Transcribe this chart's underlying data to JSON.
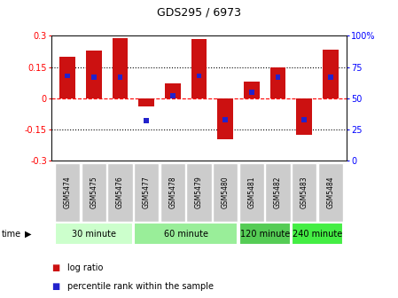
{
  "title": "GDS295 / 6973",
  "samples": [
    "GSM5474",
    "GSM5475",
    "GSM5476",
    "GSM5477",
    "GSM5478",
    "GSM5479",
    "GSM5480",
    "GSM5481",
    "GSM5482",
    "GSM5483",
    "GSM5484"
  ],
  "log_ratio": [
    0.2,
    0.23,
    0.29,
    -0.04,
    0.07,
    0.285,
    -0.195,
    0.08,
    0.15,
    -0.175,
    0.235
  ],
  "percentile": [
    0.68,
    0.67,
    0.67,
    0.32,
    0.52,
    0.68,
    0.33,
    0.55,
    0.67,
    0.33,
    0.67
  ],
  "bar_color": "#cc1111",
  "perc_color": "#2222cc",
  "ylim_left": [
    -0.3,
    0.3
  ],
  "ylim_right": [
    0,
    100
  ],
  "yticks_left": [
    -0.3,
    -0.15,
    0.0,
    0.15,
    0.3
  ],
  "yticks_right": [
    0,
    25,
    50,
    75,
    100
  ],
  "ytick_labels_left": [
    "-0.3",
    "-0.15",
    "0",
    "0.15",
    "0.3"
  ],
  "ytick_labels_right": [
    "0",
    "25",
    "50",
    "75",
    "100%"
  ],
  "groups": [
    {
      "label": "30 minute",
      "start": 0,
      "end": 2,
      "color": "#ccffcc"
    },
    {
      "label": "60 minute",
      "start": 3,
      "end": 6,
      "color": "#99ee99"
    },
    {
      "label": "120 minute",
      "start": 7,
      "end": 8,
      "color": "#55cc55"
    },
    {
      "label": "240 minute",
      "start": 9,
      "end": 10,
      "color": "#44ee44"
    }
  ],
  "time_label": "time",
  "legend_log": "log ratio",
  "legend_perc": "percentile rank within the sample",
  "bar_width": 0.6,
  "perc_bar_width": 0.18
}
